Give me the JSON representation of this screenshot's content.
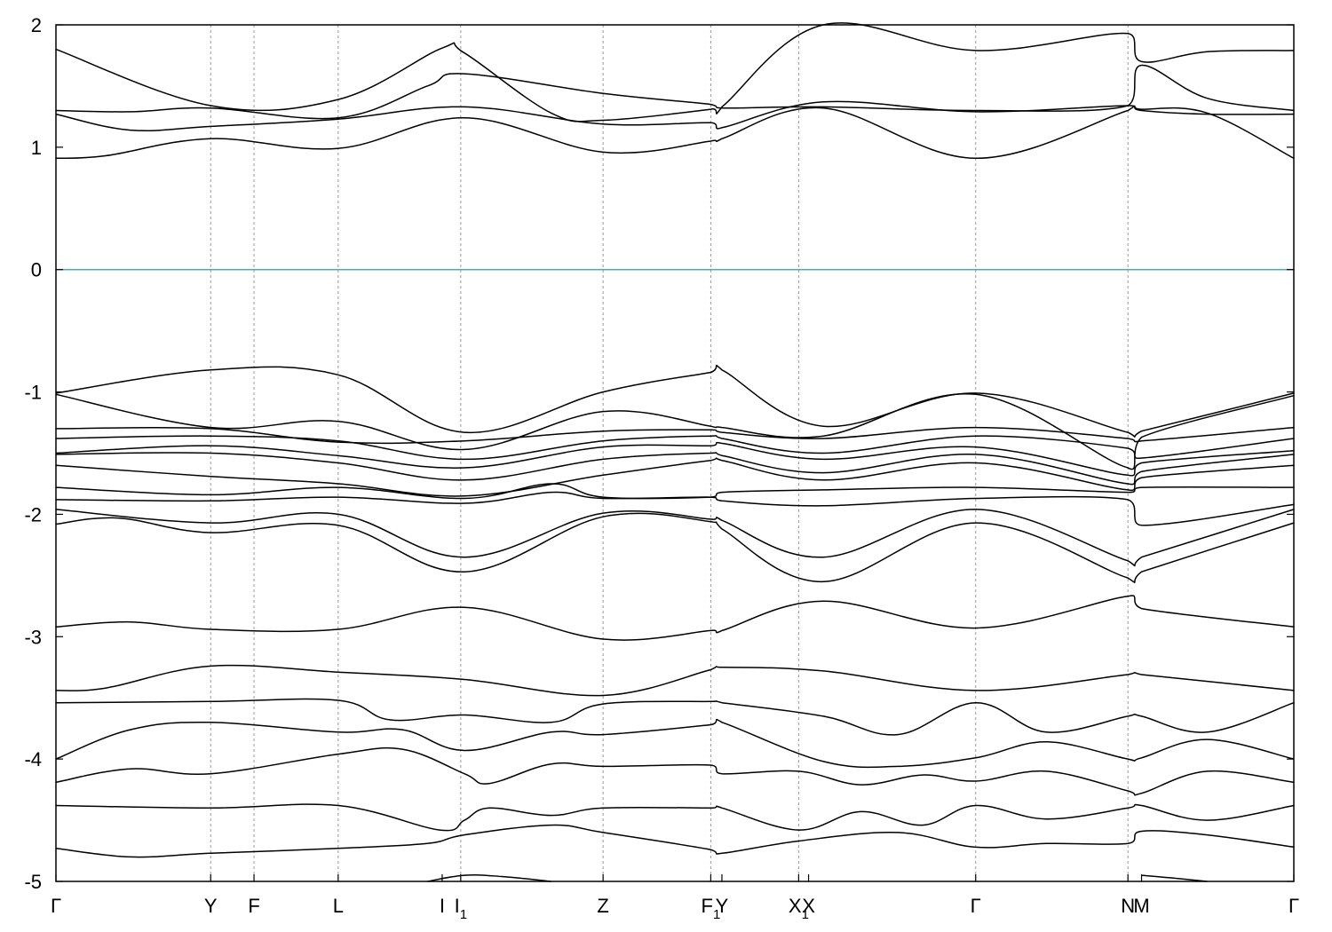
{
  "chart_data": {
    "type": "line",
    "title": "",
    "xlabel": "",
    "ylabel": "",
    "ylim": [
      -5,
      2
    ],
    "y_ticks": [
      "2",
      "1",
      "0",
      "-1",
      "-2",
      "-3",
      "-4",
      "-5"
    ],
    "y_tick_values": [
      2,
      1,
      0,
      -1,
      -2,
      -3,
      -4,
      -5
    ],
    "x_range": [
      0,
      1
    ],
    "kpoints": [
      {
        "pos": 0.0,
        "label": "Γ",
        "sub": ""
      },
      {
        "pos": 0.125,
        "label": "Y",
        "sub": ""
      },
      {
        "pos": 0.16,
        "label": "F",
        "sub": ""
      },
      {
        "pos": 0.228,
        "label": "L",
        "sub": ""
      },
      {
        "pos": 0.312,
        "label": "I",
        "sub": ""
      },
      {
        "pos": 0.327,
        "label": "I",
        "sub": "1"
      },
      {
        "pos": 0.442,
        "label": "Z",
        "sub": ""
      },
      {
        "pos": 0.529,
        "label": "F",
        "sub": "1"
      },
      {
        "pos": 0.538,
        "label": "Y",
        "sub": ""
      },
      {
        "pos": 0.6,
        "label": "X",
        "sub": "1"
      },
      {
        "pos": 0.608,
        "label": "X",
        "sub": ""
      },
      {
        "pos": 0.743,
        "label": "Γ",
        "sub": ""
      },
      {
        "pos": 0.866,
        "label": "N",
        "sub": ""
      },
      {
        "pos": 0.877,
        "label": "M",
        "sub": ""
      },
      {
        "pos": 1.0,
        "label": "Γ",
        "sub": ""
      }
    ],
    "kpoint_line_positions": [
      0.125,
      0.16,
      0.228,
      0.327,
      0.442,
      0.529,
      0.6,
      0.743,
      0.866
    ],
    "fermi_level": 0,
    "grid": false,
    "colors": {
      "bands": "#000000",
      "fermi": "#4aa8c9",
      "kpoint_lines": "#999999"
    },
    "series": [
      {
        "x": [
          0,
          0.04,
          0.125,
          0.228,
          0.33,
          0.442,
          0.529,
          0.538,
          0.62,
          0.743,
          0.866,
          0.877,
          0.93,
          1.0
        ],
        "y": [
          0.91,
          0.93,
          1.07,
          0.99,
          1.24,
          0.96,
          1.05,
          1.07,
          1.32,
          0.91,
          1.3,
          1.31,
          1.28,
          0.91
        ]
      },
      {
        "x": [
          0,
          0.06,
          0.125,
          0.228,
          0.33,
          0.442,
          0.529,
          0.538,
          0.62,
          0.743,
          0.866,
          0.877,
          0.93,
          1.0
        ],
        "y": [
          1.27,
          1.14,
          1.17,
          1.23,
          1.33,
          1.19,
          1.2,
          1.16,
          1.37,
          1.29,
          1.34,
          1.3,
          1.27,
          1.27
        ]
      },
      {
        "x": [
          0,
          0.06,
          0.125,
          0.228,
          0.3,
          0.33,
          0.442,
          0.529,
          0.538,
          0.62,
          0.743,
          0.866,
          0.877,
          0.93,
          1.0
        ],
        "y": [
          1.3,
          1.29,
          1.32,
          1.24,
          1.5,
          1.6,
          1.44,
          1.35,
          1.32,
          1.33,
          1.3,
          1.34,
          1.67,
          1.4,
          1.3
        ]
      },
      {
        "x": [
          0,
          0.125,
          0.228,
          0.312,
          0.33,
          0.4,
          0.442,
          0.529,
          0.538,
          0.62,
          0.743,
          0.866,
          0.877,
          0.93,
          1.0
        ],
        "y": [
          1.8,
          1.34,
          1.39,
          1.81,
          1.77,
          1.28,
          1.22,
          1.31,
          1.33,
          2.0,
          1.79,
          1.93,
          1.7,
          1.78,
          1.79
        ]
      },
      {
        "x": [
          0,
          0.125,
          0.228,
          0.33,
          0.442,
          0.529,
          0.538,
          0.62,
          0.743,
          0.866,
          0.877,
          1.0
        ],
        "y": [
          -1.01,
          -0.82,
          -0.86,
          -1.33,
          -1.0,
          -0.84,
          -0.82,
          -1.28,
          -1.01,
          -1.33,
          -1.32,
          -1.01
        ]
      },
      {
        "x": [
          0,
          0.125,
          0.228,
          0.33,
          0.442,
          0.529,
          0.538,
          0.62,
          0.743,
          0.866,
          0.877,
          1.0
        ],
        "y": [
          -1.02,
          -1.29,
          -1.24,
          -1.47,
          -1.16,
          -1.28,
          -1.29,
          -1.36,
          -1.02,
          -1.62,
          -1.37,
          -1.03
        ]
      },
      {
        "x": [
          0,
          0.125,
          0.228,
          0.33,
          0.442,
          0.529,
          0.538,
          0.62,
          0.743,
          0.866,
          0.877,
          1.0
        ],
        "y": [
          -1.3,
          -1.3,
          -1.41,
          -1.4,
          -1.32,
          -1.31,
          -1.33,
          -1.38,
          -1.29,
          -1.38,
          -1.4,
          -1.29
        ]
      },
      {
        "x": [
          0,
          0.125,
          0.228,
          0.33,
          0.442,
          0.529,
          0.538,
          0.62,
          0.743,
          0.866,
          0.877,
          1.0
        ],
        "y": [
          -1.38,
          -1.36,
          -1.4,
          -1.55,
          -1.4,
          -1.36,
          -1.38,
          -1.5,
          -1.36,
          -1.46,
          -1.54,
          -1.38
        ]
      },
      {
        "x": [
          0,
          0.125,
          0.228,
          0.33,
          0.442,
          0.529,
          0.538,
          0.62,
          0.743,
          0.866,
          0.877,
          1.0
        ],
        "y": [
          -1.5,
          -1.44,
          -1.52,
          -1.62,
          -1.45,
          -1.44,
          -1.42,
          -1.55,
          -1.45,
          -1.68,
          -1.58,
          -1.48
        ]
      },
      {
        "x": [
          0,
          0.125,
          0.228,
          0.33,
          0.442,
          0.529,
          0.538,
          0.62,
          0.743,
          0.866,
          0.877,
          1.0
        ],
        "y": [
          -1.51,
          -1.5,
          -1.58,
          -1.72,
          -1.55,
          -1.5,
          -1.52,
          -1.66,
          -1.51,
          -1.75,
          -1.65,
          -1.51
        ]
      },
      {
        "x": [
          0,
          0.125,
          0.228,
          0.33,
          0.442,
          0.529,
          0.538,
          0.62,
          0.743,
          0.866,
          0.877,
          1.0
        ],
        "y": [
          -1.6,
          -1.69,
          -1.75,
          -1.85,
          -1.68,
          -1.56,
          -1.56,
          -1.72,
          -1.58,
          -1.8,
          -1.7,
          -1.6
        ]
      },
      {
        "x": [
          0,
          0.125,
          0.228,
          0.33,
          0.4,
          0.442,
          0.529,
          0.538,
          0.62,
          0.743,
          0.866,
          0.877,
          1.0
        ],
        "y": [
          -1.78,
          -1.84,
          -1.78,
          -1.87,
          -1.75,
          -1.86,
          -1.86,
          -1.82,
          -1.8,
          -1.78,
          -1.82,
          -1.78,
          -1.78
        ]
      },
      {
        "x": [
          0,
          0.125,
          0.228,
          0.33,
          0.4,
          0.442,
          0.529,
          0.538,
          0.62,
          0.743,
          0.866,
          0.877,
          1.0
        ],
        "y": [
          -1.88,
          -1.89,
          -1.86,
          -1.91,
          -1.82,
          -1.87,
          -1.86,
          -1.89,
          -1.93,
          -1.87,
          -1.88,
          -2.09,
          -1.92
        ]
      },
      {
        "x": [
          0,
          0.05,
          0.125,
          0.228,
          0.33,
          0.442,
          0.529,
          0.538,
          0.62,
          0.743,
          0.866,
          0.877,
          1.0
        ],
        "y": [
          -2.08,
          -2.03,
          -2.15,
          -2.09,
          -2.47,
          -2.02,
          -2.06,
          -2.12,
          -2.55,
          -2.07,
          -2.52,
          -2.47,
          -2.07
        ]
      },
      {
        "x": [
          0,
          0.125,
          0.228,
          0.33,
          0.442,
          0.529,
          0.538,
          0.62,
          0.743,
          0.866,
          0.877,
          1.0
        ],
        "y": [
          -1.96,
          -2.07,
          -2.0,
          -2.35,
          -1.99,
          -2.04,
          -2.05,
          -2.35,
          -1.96,
          -2.38,
          -2.35,
          -1.96
        ]
      },
      {
        "x": [
          0,
          0.06,
          0.125,
          0.228,
          0.33,
          0.442,
          0.529,
          0.538,
          0.62,
          0.743,
          0.866,
          0.877,
          1.0
        ],
        "y": [
          -2.92,
          -2.88,
          -2.94,
          -2.94,
          -2.76,
          -3.02,
          -2.95,
          -2.95,
          -2.71,
          -2.93,
          -2.67,
          -2.77,
          -2.92
        ]
      },
      {
        "x": [
          0,
          0.04,
          0.125,
          0.228,
          0.33,
          0.442,
          0.529,
          0.538,
          0.62,
          0.743,
          0.866,
          0.877,
          1.0
        ],
        "y": [
          -3.44,
          -3.42,
          -3.24,
          -3.29,
          -3.35,
          -3.48,
          -3.27,
          -3.25,
          -3.28,
          -3.44,
          -3.31,
          -3.31,
          -3.44
        ]
      },
      {
        "x": [
          0,
          0.125,
          0.228,
          0.27,
          0.33,
          0.4,
          0.442,
          0.529,
          0.538,
          0.62,
          0.68,
          0.743,
          0.8,
          0.866,
          0.877,
          0.93,
          1.0
        ],
        "y": [
          -3.54,
          -3.53,
          -3.52,
          -3.68,
          -3.64,
          -3.7,
          -3.55,
          -3.53,
          -3.54,
          -3.65,
          -3.8,
          -3.54,
          -3.78,
          -3.65,
          -3.65,
          -3.78,
          -3.54
        ]
      },
      {
        "x": [
          0,
          0.06,
          0.125,
          0.228,
          0.28,
          0.33,
          0.4,
          0.442,
          0.529,
          0.538,
          0.62,
          0.68,
          0.743,
          0.8,
          0.866,
          0.877,
          0.93,
          1.0
        ],
        "y": [
          -4.0,
          -3.76,
          -3.7,
          -3.78,
          -3.76,
          -3.93,
          -3.78,
          -3.8,
          -3.72,
          -3.7,
          -4.02,
          -4.06,
          -3.99,
          -3.86,
          -4.0,
          -3.99,
          -3.84,
          -4.0
        ]
      },
      {
        "x": [
          0,
          0.06,
          0.125,
          0.228,
          0.28,
          0.33,
          0.35,
          0.4,
          0.442,
          0.529,
          0.538,
          0.6,
          0.65,
          0.7,
          0.743,
          0.8,
          0.866,
          0.877,
          0.93,
          1.0
        ],
        "y": [
          -4.19,
          -4.08,
          -4.12,
          -3.96,
          -3.92,
          -4.12,
          -4.2,
          -4.04,
          -4.06,
          -4.05,
          -4.12,
          -4.1,
          -4.21,
          -4.13,
          -4.18,
          -4.1,
          -4.26,
          -4.28,
          -4.1,
          -4.19
        ]
      },
      {
        "x": [
          0,
          0.125,
          0.228,
          0.31,
          0.33,
          0.35,
          0.4,
          0.442,
          0.529,
          0.538,
          0.6,
          0.65,
          0.7,
          0.743,
          0.8,
          0.866,
          0.877,
          0.93,
          1.0
        ],
        "y": [
          -4.38,
          -4.4,
          -4.38,
          -4.58,
          -4.5,
          -4.4,
          -4.46,
          -4.4,
          -4.4,
          -4.4,
          -4.58,
          -4.43,
          -4.54,
          -4.38,
          -4.49,
          -4.4,
          -4.38,
          -4.5,
          -4.38
        ]
      },
      {
        "x": [
          0,
          0.06,
          0.125,
          0.228,
          0.3,
          0.33,
          0.4,
          0.442,
          0.529,
          0.538,
          0.6,
          0.68,
          0.743,
          0.8,
          0.866,
          0.877,
          0.93,
          1.0
        ],
        "y": [
          -4.73,
          -4.8,
          -4.77,
          -4.73,
          -4.69,
          -4.62,
          -4.54,
          -4.6,
          -4.74,
          -4.77,
          -4.67,
          -4.6,
          -4.72,
          -4.69,
          -4.69,
          -4.59,
          -4.62,
          -4.72
        ]
      },
      {
        "x": [
          0.3,
          0.33,
          0.36,
          0.4
        ],
        "y": [
          -5.0,
          -4.95,
          -4.96,
          -5.0
        ]
      },
      {
        "x": [
          0.877,
          0.9,
          0.93
        ],
        "y": [
          -4.95,
          -4.97,
          -5.0
        ]
      }
    ]
  }
}
